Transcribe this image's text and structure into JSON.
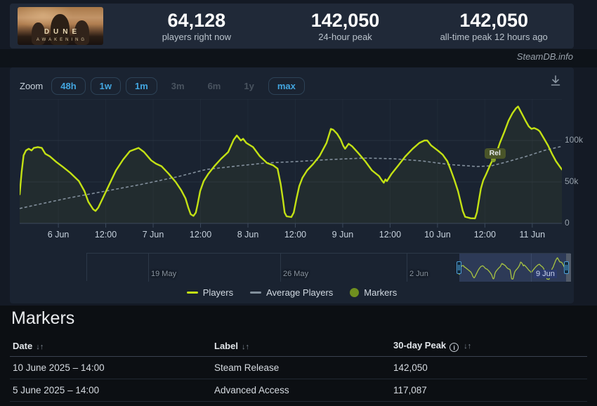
{
  "header": {
    "game_logo_line1": "DUNE",
    "game_logo_line2": "AWAKENING",
    "stats": [
      {
        "value": "64,128",
        "label": "players right now"
      },
      {
        "value": "142,050",
        "label": "24-hour peak"
      },
      {
        "value": "142,050",
        "label": "all-time peak 12 hours ago"
      }
    ]
  },
  "credit": "SteamDB.info",
  "toolbar": {
    "zoom_label": "Zoom",
    "buttons": [
      {
        "label": "48h",
        "enabled": true,
        "active": false
      },
      {
        "label": "1w",
        "enabled": true,
        "active": false
      },
      {
        "label": "1m",
        "enabled": true,
        "active": false
      },
      {
        "label": "3m",
        "enabled": false,
        "active": false
      },
      {
        "label": "6m",
        "enabled": false,
        "active": false
      },
      {
        "label": "1y",
        "enabled": false,
        "active": false
      },
      {
        "label": "max",
        "enabled": true,
        "active": true
      }
    ]
  },
  "chart_data": {
    "type": "line",
    "title": "",
    "x_unit": "hours since 6 Jun 2025 00:00",
    "x_range": [
      -9.8,
      127.5
    ],
    "y_max_k": 150,
    "y_ticks": [
      {
        "v": 0,
        "label": "0"
      },
      {
        "v": 50,
        "label": "50k"
      },
      {
        "v": 100,
        "label": "100k"
      }
    ],
    "x_ticks": [
      {
        "t": 0,
        "label": "6 Jun"
      },
      {
        "t": 12,
        "label": "12:00"
      },
      {
        "t": 24,
        "label": "7 Jun"
      },
      {
        "t": 36,
        "label": "12:00"
      },
      {
        "t": 48,
        "label": "8 Jun"
      },
      {
        "t": 60,
        "label": "12:00"
      },
      {
        "t": 72,
        "label": "9 Jun"
      },
      {
        "t": 84,
        "label": "12:00"
      },
      {
        "t": 96,
        "label": "10 Jun"
      },
      {
        "t": 108,
        "label": "12:00"
      },
      {
        "t": 120,
        "label": "11 Jun"
      }
    ],
    "grid": true,
    "legend_position": "bottom",
    "series": [
      {
        "name": "Players",
        "color": "#c3e114",
        "units": "thousands of players",
        "points_k": [
          [
            -9.8,
            35
          ],
          [
            -9.3,
            62
          ],
          [
            -8.8,
            82
          ],
          [
            -8.2,
            88
          ],
          [
            -7.5,
            90
          ],
          [
            -6.8,
            88
          ],
          [
            -6.2,
            91
          ],
          [
            -5.2,
            92
          ],
          [
            -4.2,
            91
          ],
          [
            -3.3,
            84
          ],
          [
            -2.2,
            81
          ],
          [
            -0.5,
            74
          ],
          [
            1.2,
            68
          ],
          [
            3,
            61
          ],
          [
            5.2,
            51
          ],
          [
            6.6,
            39
          ],
          [
            7.6,
            26
          ],
          [
            8.8,
            17
          ],
          [
            9.4,
            15
          ],
          [
            10.1,
            19
          ],
          [
            11.2,
            30
          ],
          [
            12.8,
            46
          ],
          [
            14.6,
            64
          ],
          [
            16.4,
            77
          ],
          [
            18.1,
            87
          ],
          [
            20.3,
            91
          ],
          [
            21.7,
            86
          ],
          [
            23.5,
            76
          ],
          [
            24.7,
            72
          ],
          [
            26.1,
            69
          ],
          [
            27.9,
            60
          ],
          [
            29.7,
            50
          ],
          [
            31.1,
            40
          ],
          [
            32.2,
            30
          ],
          [
            32.9,
            19
          ],
          [
            33.5,
            11
          ],
          [
            34.2,
            9
          ],
          [
            34.8,
            13
          ],
          [
            35.3,
            24
          ],
          [
            35.9,
            39
          ],
          [
            36.8,
            51
          ],
          [
            38,
            60
          ],
          [
            39.5,
            69
          ],
          [
            41.2,
            78
          ],
          [
            43,
            86
          ],
          [
            44.4,
            101
          ],
          [
            45.2,
            106
          ],
          [
            46.2,
            100
          ],
          [
            46.8,
            102
          ],
          [
            47.6,
            97
          ],
          [
            49.3,
            92
          ],
          [
            51,
            81
          ],
          [
            52.8,
            73
          ],
          [
            54.4,
            70
          ],
          [
            55.5,
            66
          ],
          [
            56.3,
            47
          ],
          [
            56.9,
            28
          ],
          [
            57.3,
            13
          ],
          [
            57.8,
            8.5
          ],
          [
            59,
            7.6
          ],
          [
            59.6,
            13
          ],
          [
            60.3,
            30
          ],
          [
            61,
            45
          ],
          [
            61.8,
            55
          ],
          [
            63,
            64
          ],
          [
            64.4,
            71
          ],
          [
            66.1,
            81
          ],
          [
            67.9,
            97
          ],
          [
            69,
            114
          ],
          [
            69.6,
            113
          ],
          [
            70.6,
            108
          ],
          [
            71.5,
            101
          ],
          [
            72.1,
            94
          ],
          [
            72.6,
            90
          ],
          [
            73.5,
            96
          ],
          [
            74.4,
            93
          ],
          [
            75.9,
            85
          ],
          [
            77.7,
            75
          ],
          [
            79.4,
            64
          ],
          [
            81.2,
            57
          ],
          [
            81.9,
            52
          ],
          [
            82.4,
            49
          ],
          [
            82.8,
            53
          ],
          [
            83.2,
            51
          ],
          [
            84.4,
            60
          ],
          [
            86.1,
            70
          ],
          [
            87.9,
            81
          ],
          [
            89.7,
            90
          ],
          [
            91.4,
            97
          ],
          [
            92.7,
            100
          ],
          [
            93.4,
            100
          ],
          [
            94.4,
            94
          ],
          [
            95.5,
            90
          ],
          [
            96.3,
            87
          ],
          [
            97.3,
            83
          ],
          [
            98.5,
            75
          ],
          [
            99.4,
            64
          ],
          [
            100.3,
            52
          ],
          [
            101.2,
            39
          ],
          [
            101.9,
            25
          ],
          [
            102.4,
            15
          ],
          [
            103,
            8
          ],
          [
            104.4,
            6.2
          ],
          [
            105.5,
            6
          ],
          [
            106,
            13.5
          ],
          [
            106.5,
            28
          ],
          [
            107,
            42
          ],
          [
            107.6,
            52
          ],
          [
            108.3,
            59
          ],
          [
            109.2,
            69
          ],
          [
            110,
            77
          ],
          [
            110.8,
            83
          ],
          [
            111.8,
            97
          ],
          [
            112.9,
            110
          ],
          [
            114,
            124
          ],
          [
            115,
            133
          ],
          [
            115.9,
            139
          ],
          [
            116.4,
            141
          ],
          [
            117.4,
            132
          ],
          [
            118.4,
            123
          ],
          [
            119.1,
            117
          ],
          [
            119.8,
            114
          ],
          [
            120.5,
            115
          ],
          [
            121.4,
            113
          ],
          [
            121.9,
            111
          ],
          [
            122.9,
            103
          ],
          [
            124,
            94
          ],
          [
            125,
            84
          ],
          [
            126,
            75
          ],
          [
            126.9,
            69
          ],
          [
            127.5,
            65
          ]
        ]
      },
      {
        "name": "Average Players",
        "color": "#828f9c",
        "dashed": true,
        "units": "thousands of players",
        "points_k": [
          [
            -9.8,
            18
          ],
          [
            -4,
            24
          ],
          [
            3,
            31
          ],
          [
            12,
            39
          ],
          [
            21,
            47
          ],
          [
            30,
            56
          ],
          [
            37.4,
            65
          ],
          [
            45.7,
            69.5
          ],
          [
            52.8,
            73
          ],
          [
            59.9,
            74.5
          ],
          [
            68.8,
            77
          ],
          [
            77.7,
            78.8
          ],
          [
            84.8,
            78
          ],
          [
            91.9,
            75.4
          ],
          [
            99,
            71
          ],
          [
            106,
            68.6
          ],
          [
            109.7,
            69.5
          ],
          [
            113.2,
            73.7
          ],
          [
            118.6,
            81
          ],
          [
            123,
            88
          ],
          [
            127.5,
            93
          ]
        ]
      }
    ],
    "marker": {
      "label": "Rel",
      "t": 110,
      "v_k": 77,
      "color": "#87a32c"
    },
    "navigator": {
      "ticks": [
        {
          "pos": 0.126,
          "label": "19 May",
          "highlight": false
        },
        {
          "pos": 0.399,
          "label": "26 May",
          "highlight": false
        },
        {
          "pos": 0.66,
          "label": "2 Jun",
          "highlight": false
        },
        {
          "pos": 0.917,
          "label": "9 Jun",
          "highlight": true
        }
      ],
      "selection": [
        0.769,
        0.99
      ]
    }
  },
  "legend": [
    {
      "label": "Players",
      "swatch": "line",
      "color": "#c3e114"
    },
    {
      "label": "Average Players",
      "swatch": "line",
      "color": "#828f9c"
    },
    {
      "label": "Markers",
      "swatch": "dot",
      "color": "#6f8f1f"
    }
  ],
  "icons": {
    "sort_glyph": "↓↑",
    "info_glyph": "i",
    "download": "download-icon"
  },
  "markers_section": {
    "title": "Markers",
    "table": {
      "headers": [
        {
          "label": "Date",
          "sortable": true,
          "info": false
        },
        {
          "label": "Label",
          "sortable": true,
          "info": false
        },
        {
          "label": "30-day Peak",
          "sortable": true,
          "info": true
        }
      ],
      "rows": [
        {
          "date": "10 June 2025 – 14:00",
          "label": "Steam Release",
          "peak": "142,050"
        },
        {
          "date": "5 June 2025 – 14:00",
          "label": "Advanced Access",
          "peak": "117,087"
        }
      ]
    }
  },
  "colors": {
    "accent_blue": "#43a6e0",
    "players_line": "#c3e114",
    "average_line": "#828f9c",
    "marker_olive": "#6f8f1f",
    "panel_bg": "#1a2331",
    "page_bg": "#141a25",
    "bottom_bg": "#0c0f13"
  }
}
